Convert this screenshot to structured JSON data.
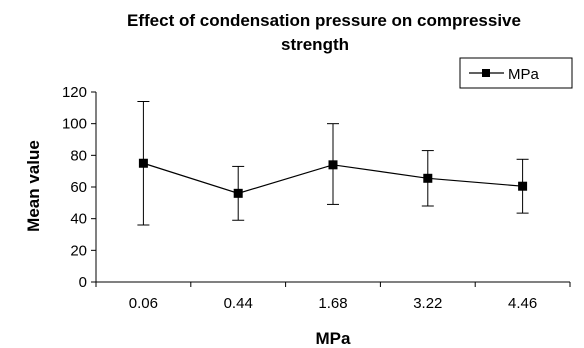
{
  "chart_data": {
    "type": "line",
    "title": "Effect of condensation pressure on compressive strength",
    "title_lines": [
      "Effect of condensation pressure on compressive",
      "strength"
    ],
    "xlabel": "MPa",
    "ylabel": "Mean value",
    "categories": [
      "0.06",
      "0.44",
      "1.68",
      "3.22",
      "4.46"
    ],
    "ylim": [
      0,
      120
    ],
    "yticks": [
      0,
      20,
      40,
      60,
      80,
      100,
      120
    ],
    "grid": false,
    "legend_position": "top-right",
    "series": [
      {
        "name": "MPa",
        "values": [
          75,
          56,
          74,
          65.5,
          60.5
        ],
        "error_upper": [
          114,
          73,
          100,
          83,
          77.5
        ],
        "error_lower": [
          36,
          39,
          49,
          48,
          43.5
        ],
        "marker": "square",
        "color": "#000000"
      }
    ]
  }
}
